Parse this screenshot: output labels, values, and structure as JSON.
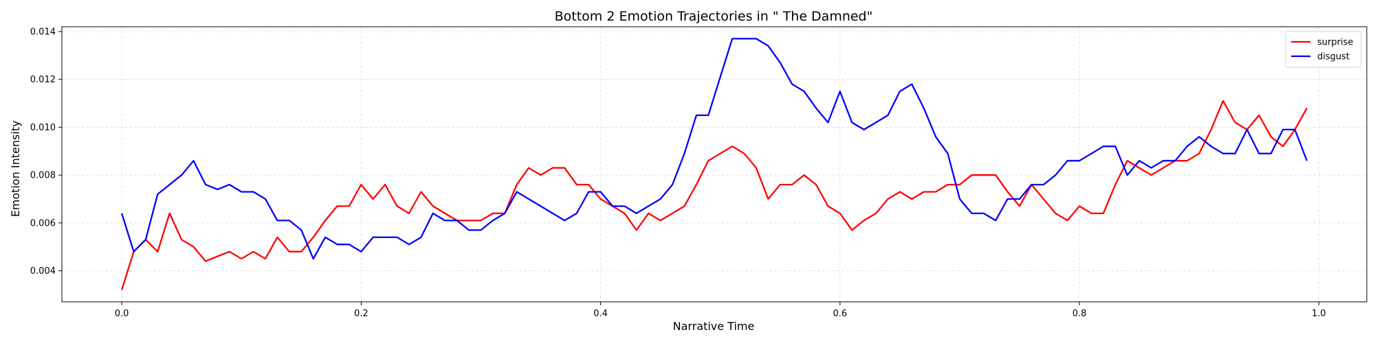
{
  "chart_data": {
    "type": "line",
    "title": "Bottom 2 Emotion Trajectories in \" The Damned\"",
    "xlabel": "Narrative Time",
    "ylabel": "Emotion Intensity",
    "xlim": [
      -0.05,
      1.04
    ],
    "ylim": [
      0.0027,
      0.0142
    ],
    "xticks": [
      0.0,
      0.2,
      0.4,
      0.6,
      0.8,
      1.0
    ],
    "xtick_labels": [
      "0.0",
      "0.2",
      "0.4",
      "0.6",
      "0.8",
      "1.0"
    ],
    "yticks": [
      0.004,
      0.006,
      0.008,
      0.01,
      0.012,
      0.014
    ],
    "ytick_labels": [
      "0.004",
      "0.006",
      "0.008",
      "0.010",
      "0.012",
      "0.014"
    ],
    "grid": true,
    "legend_position": "top-right",
    "x": [
      0.0,
      0.01,
      0.02,
      0.03,
      0.04,
      0.05,
      0.06,
      0.07,
      0.08,
      0.09,
      0.1,
      0.11,
      0.12,
      0.13,
      0.14,
      0.15,
      0.16,
      0.17,
      0.18,
      0.19,
      0.2,
      0.21,
      0.22,
      0.23,
      0.24,
      0.25,
      0.26,
      0.27,
      0.28,
      0.29,
      0.3,
      0.31,
      0.32,
      0.33,
      0.34,
      0.35,
      0.36,
      0.37,
      0.38,
      0.39,
      0.4,
      0.41,
      0.42,
      0.43,
      0.44,
      0.45,
      0.46,
      0.47,
      0.48,
      0.49,
      0.5,
      0.51,
      0.52,
      0.53,
      0.54,
      0.55,
      0.56,
      0.57,
      0.58,
      0.59,
      0.6,
      0.61,
      0.62,
      0.63,
      0.64,
      0.65,
      0.66,
      0.67,
      0.68,
      0.69,
      0.7,
      0.71,
      0.72,
      0.73,
      0.74,
      0.75,
      0.76,
      0.77,
      0.78,
      0.79,
      0.8,
      0.81,
      0.82,
      0.83,
      0.84,
      0.85,
      0.86,
      0.87,
      0.88,
      0.89,
      0.9,
      0.91,
      0.92,
      0.93,
      0.94,
      0.95,
      0.96,
      0.97,
      0.98,
      0.99
    ],
    "series": [
      {
        "name": "surprise",
        "color": "#ff0000",
        "values": [
          0.0032,
          0.0048,
          0.0053,
          0.0048,
          0.0064,
          0.0053,
          0.005,
          0.0044,
          0.0046,
          0.0048,
          0.0045,
          0.0048,
          0.0045,
          0.0054,
          0.0048,
          0.0048,
          0.0054,
          0.0061,
          0.0067,
          0.0067,
          0.0076,
          0.007,
          0.0076,
          0.0067,
          0.0064,
          0.0073,
          0.0067,
          0.0064,
          0.0061,
          0.0061,
          0.0061,
          0.0064,
          0.0064,
          0.0076,
          0.0083,
          0.008,
          0.0083,
          0.0083,
          0.0076,
          0.0076,
          0.007,
          0.0067,
          0.0064,
          0.0057,
          0.0064,
          0.0061,
          0.0064,
          0.0067,
          0.0076,
          0.0086,
          0.0089,
          0.0092,
          0.0089,
          0.0083,
          0.007,
          0.0076,
          0.0076,
          0.008,
          0.0076,
          0.0067,
          0.0064,
          0.0057,
          0.0061,
          0.0064,
          0.007,
          0.0073,
          0.007,
          0.0073,
          0.0073,
          0.0076,
          0.0076,
          0.008,
          0.008,
          0.008,
          0.0073,
          0.0067,
          0.0076,
          0.007,
          0.0064,
          0.0061,
          0.0067,
          0.0064,
          0.0064,
          0.0076,
          0.0086,
          0.0083,
          0.008,
          0.0083,
          0.0086,
          0.0086,
          0.0089,
          0.0099,
          0.0111,
          0.0102,
          0.0099,
          0.0105,
          0.0096,
          0.0092,
          0.0099,
          0.0108
        ]
      },
      {
        "name": "disgust",
        "color": "#0000ff",
        "values": [
          0.0064,
          0.0048,
          0.0053,
          0.0072,
          0.0076,
          0.008,
          0.0086,
          0.0076,
          0.0074,
          0.0076,
          0.0073,
          0.0073,
          0.007,
          0.0061,
          0.0061,
          0.0057,
          0.0045,
          0.0054,
          0.0051,
          0.0051,
          0.0048,
          0.0054,
          0.0054,
          0.0054,
          0.0051,
          0.0054,
          0.0064,
          0.0061,
          0.0061,
          0.0057,
          0.0057,
          0.0061,
          0.0064,
          0.0073,
          0.007,
          0.0067,
          0.0064,
          0.0061,
          0.0064,
          0.0073,
          0.0073,
          0.0067,
          0.0067,
          0.0064,
          0.0067,
          0.007,
          0.0076,
          0.0089,
          0.0105,
          0.0105,
          0.0121,
          0.0137,
          0.0137,
          0.0137,
          0.0134,
          0.0127,
          0.0118,
          0.0115,
          0.0108,
          0.0102,
          0.0115,
          0.0102,
          0.0099,
          0.0102,
          0.0105,
          0.0115,
          0.0118,
          0.0108,
          0.0096,
          0.0089,
          0.007,
          0.0064,
          0.0064,
          0.0061,
          0.007,
          0.007,
          0.0076,
          0.0076,
          0.008,
          0.0086,
          0.0086,
          0.0089,
          0.0092,
          0.0092,
          0.008,
          0.0086,
          0.0083,
          0.0086,
          0.0086,
          0.0092,
          0.0096,
          0.0092,
          0.0089,
          0.0089,
          0.0099,
          0.0089,
          0.0089,
          0.0099,
          0.0099,
          0.0086
        ]
      }
    ]
  }
}
